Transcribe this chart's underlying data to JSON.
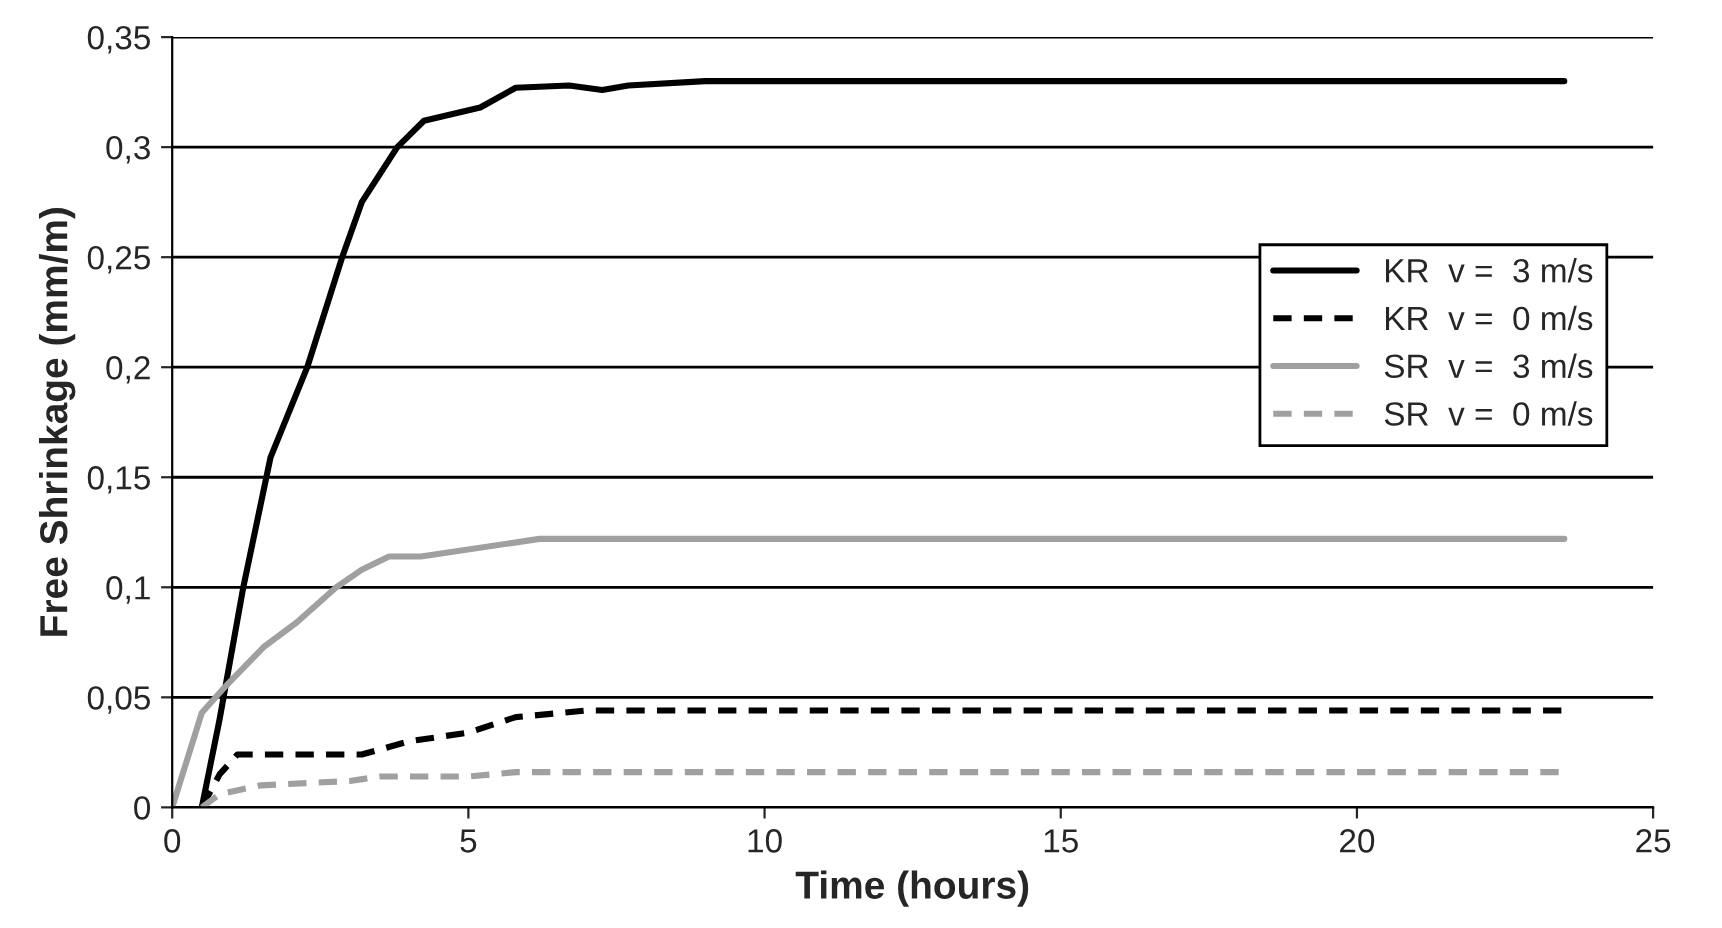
{
  "chart_data": {
    "type": "line",
    "xlabel": "Time (hours)",
    "ylabel": "Free Shrinkage (mm/m)",
    "xlim": [
      0,
      25
    ],
    "xticks": [
      0,
      5,
      10,
      15,
      20,
      25
    ],
    "ylim": [
      0,
      0.35
    ],
    "yticks": [
      {
        "value": 0,
        "label": "0"
      },
      {
        "value": 0.05,
        "label": "0,05"
      },
      {
        "value": 0.1,
        "label": "0,1"
      },
      {
        "value": 0.15,
        "label": "0,15"
      },
      {
        "value": 0.2,
        "label": "0,2"
      },
      {
        "value": 0.25,
        "label": "0,25"
      },
      {
        "value": 0.3,
        "label": "0,3"
      },
      {
        "value": 0.35,
        "label": "0,35"
      }
    ],
    "grid": "y",
    "legend": "right",
    "marker": "none",
    "series": [
      {
        "name": "KR  v =  3 m/s",
        "color": "#000000",
        "line_style": "solid",
        "x": [
          0.5,
          0.8,
          1.2,
          1.66,
          2.28,
          2.87,
          3.2,
          3.8,
          4.25,
          5.2,
          5.8,
          6.7,
          7.26,
          7.7,
          9,
          23.5
        ],
        "values": [
          0,
          0.04,
          0.1,
          0.159,
          0.2,
          0.25,
          0.275,
          0.3,
          0.312,
          0.318,
          0.327,
          0.328,
          0.326,
          0.328,
          0.33,
          0.33
        ]
      },
      {
        "name": "KR  v =  0 m/s",
        "color": "#000000",
        "line_style": "dashed",
        "x": [
          0.5,
          0.8,
          1.1,
          3.2,
          4,
          5,
          5.8,
          7,
          23.5
        ],
        "values": [
          0,
          0.015,
          0.024,
          0.024,
          0.03,
          0.034,
          0.041,
          0.044,
          0.044
        ]
      },
      {
        "name": "SR  v =  3 m/s",
        "color": "#a0a0a0",
        "line_style": "solid",
        "x": [
          0,
          0.5,
          0.9,
          1.55,
          2.1,
          2.77,
          3.2,
          3.66,
          4.2,
          6.2,
          23.5
        ],
        "values": [
          0,
          0.043,
          0.055,
          0.073,
          0.084,
          0.1,
          0.108,
          0.114,
          0.114,
          0.122,
          0.122
        ]
      },
      {
        "name": "SR  v =  0 m/s",
        "color": "#a0a0a0",
        "line_style": "dashed",
        "x": [
          0.5,
          0.8,
          1.5,
          3,
          3.5,
          5,
          5.8,
          23.5
        ],
        "values": [
          0,
          0.006,
          0.01,
          0.012,
          0.014,
          0.014,
          0.016,
          0.016
        ]
      }
    ]
  }
}
